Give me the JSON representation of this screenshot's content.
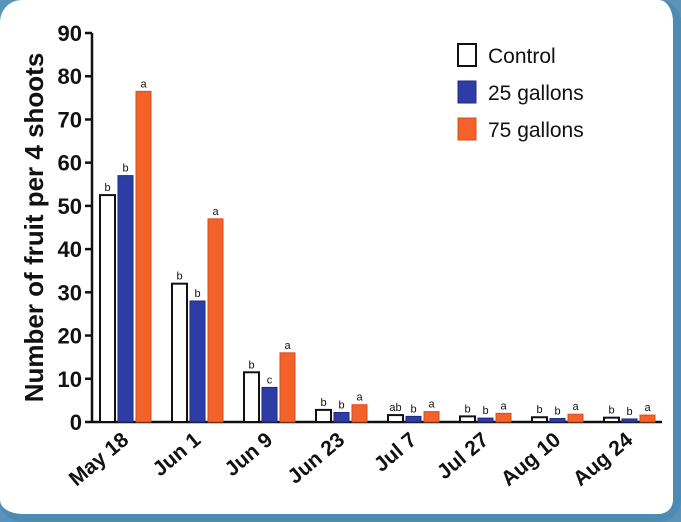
{
  "chart_data": {
    "type": "bar",
    "ylabel": "Number of fruit per 4 shoots",
    "xlabel": "",
    "ylim": [
      0,
      90
    ],
    "yticks": [
      0,
      10,
      20,
      30,
      40,
      50,
      60,
      70,
      80,
      90
    ],
    "categories": [
      "May 18",
      "Jun 1",
      "Jun 9",
      "Jun 23",
      "Jul 7",
      "Jul 27",
      "Aug 10",
      "Aug 24"
    ],
    "series": [
      {
        "name": "Control",
        "color": "#ffffff",
        "stroke": "#111111",
        "values": [
          52.5,
          32,
          11.5,
          2.8,
          1.6,
          1.3,
          1.1,
          1.0
        ],
        "labels": [
          "b",
          "b",
          "b",
          "b",
          "ab",
          "b",
          "b",
          "b"
        ]
      },
      {
        "name": "25 gallons",
        "color": "#2e3da6",
        "stroke": "#1d2a80",
        "values": [
          57,
          28,
          8,
          2.2,
          1.3,
          0.9,
          0.8,
          0.7
        ],
        "labels": [
          "b",
          "b",
          "c",
          "b",
          "b",
          "b",
          "b",
          "b"
        ]
      },
      {
        "name": "75 gallons",
        "color": "#f2622a",
        "stroke": "#d94e18",
        "values": [
          76.5,
          47,
          16,
          4,
          2.4,
          2,
          1.8,
          1.6
        ],
        "labels": [
          "a",
          "a",
          "a",
          "a",
          "a",
          "a",
          "a",
          "a"
        ]
      }
    ],
    "legend_position": "top-right",
    "grid": false
  }
}
